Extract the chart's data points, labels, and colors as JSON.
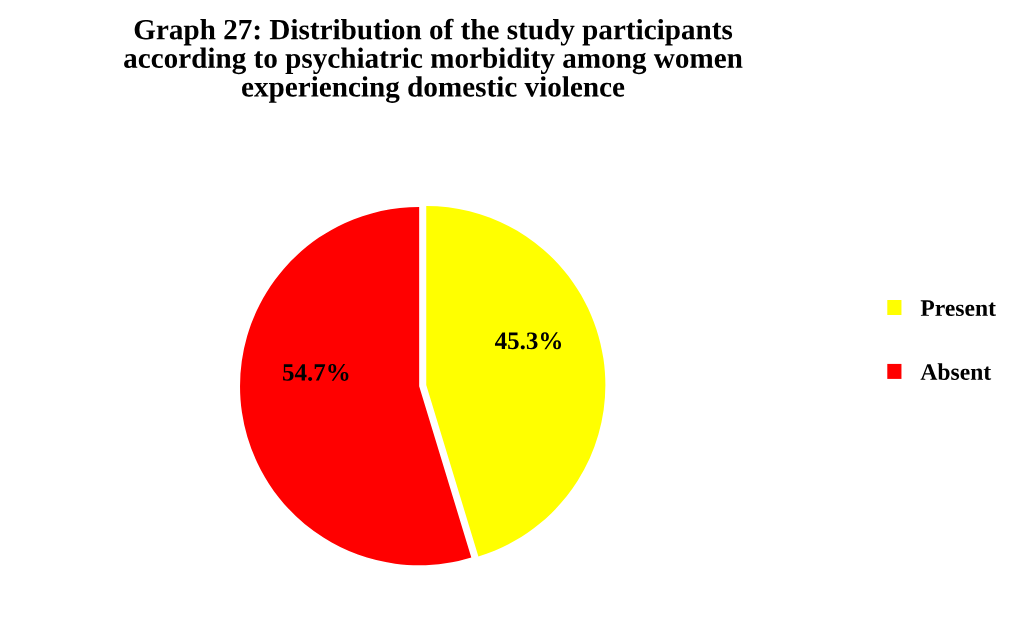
{
  "chart_data": {
    "type": "pie",
    "title": "Graph 27: Distribution of the study participants\naccording to psychiatric morbidity among women\nexperiencing domestic violence",
    "categories": [
      "Present",
      "Absent"
    ],
    "values": [
      45.3,
      54.7
    ],
    "colors": [
      "#ffff00",
      "#ff0000"
    ],
    "value_labels": [
      "45.3%",
      "54.7%"
    ],
    "legend": "right"
  }
}
